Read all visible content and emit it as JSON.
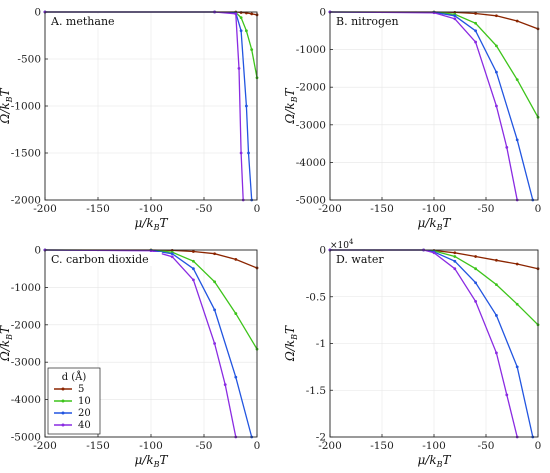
{
  "colors": {
    "d5": "#8B2500",
    "d10": "#3DC41A",
    "d20": "#2255E0",
    "d40": "#8A2BE2",
    "grid": "#e6e6e6"
  },
  "legend": {
    "title": "d (Å)",
    "items": [
      "5",
      "10",
      "20",
      "40"
    ],
    "placement": "inside lower-left of panel C"
  },
  "chart_data": [
    {
      "type": "line",
      "title": "A. methane",
      "xlabel": "μ/k_BT",
      "ylabel": "Ω/k_BT",
      "xlim": [
        -200,
        0
      ],
      "ylim": [
        -2000,
        0
      ],
      "xticks": [
        "-200",
        "-150",
        "-100",
        "-50",
        "0"
      ],
      "yticks": [
        "0",
        "-500",
        "-1000",
        "-1500",
        "-2000"
      ],
      "multiplier": "",
      "grid": true,
      "series": [
        {
          "name": "5",
          "x": [
            -200,
            -40,
            -20,
            -15,
            -10,
            -5,
            0
          ],
          "y": [
            0,
            0,
            0,
            -5,
            -10,
            -20,
            -30
          ]
        },
        {
          "name": "10",
          "x": [
            -200,
            -40,
            -20,
            -15,
            -10,
            -5,
            0
          ],
          "y": [
            0,
            0,
            -5,
            -60,
            -200,
            -400,
            -700
          ]
        },
        {
          "name": "20",
          "x": [
            -200,
            -40,
            -20,
            -15,
            -10,
            -8,
            -5
          ],
          "y": [
            0,
            0,
            -10,
            -200,
            -1000,
            -1500,
            -2000
          ]
        },
        {
          "name": "40",
          "x": [
            -200,
            -40,
            -20,
            -17,
            -15,
            -13
          ],
          "y": [
            0,
            0,
            -20,
            -600,
            -1500,
            -2000
          ]
        }
      ]
    },
    {
      "type": "line",
      "title": "B. nitrogen",
      "xlabel": "μ/k_BT",
      "ylabel": "Ω/k_BT",
      "xlim": [
        -200,
        0
      ],
      "ylim": [
        -5000,
        0
      ],
      "xticks": [
        "-200",
        "-150",
        "-100",
        "-50",
        "0"
      ],
      "yticks": [
        "0",
        "-1000",
        "-2000",
        "-3000",
        "-4000",
        "-5000"
      ],
      "multiplier": "",
      "grid": true,
      "series": [
        {
          "name": "5",
          "x": [
            -200,
            -100,
            -80,
            -60,
            -40,
            -20,
            0
          ],
          "y": [
            0,
            0,
            -10,
            -40,
            -100,
            -240,
            -450
          ]
        },
        {
          "name": "10",
          "x": [
            -200,
            -100,
            -80,
            -60,
            -40,
            -20,
            0
          ],
          "y": [
            0,
            -5,
            -60,
            -300,
            -900,
            -1800,
            -2800
          ]
        },
        {
          "name": "20",
          "x": [
            -200,
            -100,
            -80,
            -60,
            -40,
            -20,
            -5
          ],
          "y": [
            0,
            -10,
            -100,
            -500,
            -1600,
            -3400,
            -5000
          ]
        },
        {
          "name": "40",
          "x": [
            -200,
            -100,
            -80,
            -60,
            -40,
            -30,
            -20
          ],
          "y": [
            0,
            -20,
            -180,
            -800,
            -2500,
            -3600,
            -5000
          ]
        }
      ]
    },
    {
      "type": "line",
      "title": "C. carbon dioxide",
      "xlabel": "μ/k_BT",
      "ylabel": "Ω/k_BT",
      "xlim": [
        -200,
        0
      ],
      "ylim": [
        -5000,
        0
      ],
      "xticks": [
        "-200",
        "-150",
        "-100",
        "-50",
        "0"
      ],
      "yticks": [
        "0",
        "-1000",
        "-2000",
        "-3000",
        "-4000",
        "-5000"
      ],
      "multiplier": "",
      "grid": true,
      "series": [
        {
          "name": "5",
          "x": [
            -200,
            -100,
            -80,
            -60,
            -40,
            -20,
            0
          ],
          "y": [
            0,
            0,
            -10,
            -40,
            -100,
            -250,
            -480
          ]
        },
        {
          "name": "10",
          "x": [
            -200,
            -100,
            -80,
            -60,
            -40,
            -20,
            0
          ],
          "y": [
            0,
            -5,
            -60,
            -300,
            -850,
            -1700,
            -2650
          ]
        },
        {
          "name": "20",
          "x": [
            -200,
            -100,
            -80,
            -60,
            -40,
            -20,
            -5
          ],
          "y": [
            0,
            -10,
            -100,
            -500,
            -1600,
            -3400,
            -5000
          ]
        },
        {
          "name": "40",
          "x": [
            -200,
            -100,
            -80,
            -60,
            -40,
            -30,
            -20
          ],
          "y": [
            0,
            -20,
            -180,
            -800,
            -2500,
            -3600,
            -5000
          ]
        }
      ]
    },
    {
      "type": "line",
      "title": "D. water",
      "xlabel": "μ/k_BT",
      "ylabel": "Ω/k_BT",
      "xlim": [
        -200,
        0
      ],
      "ylim": [
        -2,
        0
      ],
      "xticks": [
        "-200",
        "-150",
        "-100",
        "-50",
        "0"
      ],
      "yticks": [
        "0",
        "-0.5",
        "-1",
        "-1.5",
        "-2"
      ],
      "multiplier": "×10",
      "multiplier_exp": "4",
      "grid": true,
      "series": [
        {
          "name": "5",
          "x": [
            -200,
            -110,
            -100,
            -80,
            -60,
            -40,
            -20,
            0
          ],
          "y": [
            0,
            0,
            -0.005,
            -0.03,
            -0.07,
            -0.11,
            -0.15,
            -0.2
          ]
        },
        {
          "name": "10",
          "x": [
            -200,
            -110,
            -100,
            -80,
            -60,
            -40,
            -20,
            0
          ],
          "y": [
            0,
            0,
            -0.01,
            -0.07,
            -0.2,
            -0.37,
            -0.58,
            -0.8
          ]
        },
        {
          "name": "20",
          "x": [
            -200,
            -110,
            -100,
            -80,
            -60,
            -40,
            -20,
            -5
          ],
          "y": [
            0,
            0,
            -0.02,
            -0.12,
            -0.35,
            -0.7,
            -1.25,
            -2
          ]
        },
        {
          "name": "40",
          "x": [
            -200,
            -110,
            -100,
            -80,
            -60,
            -40,
            -30,
            -20
          ],
          "y": [
            0,
            0,
            -0.03,
            -0.2,
            -0.55,
            -1.1,
            -1.55,
            -2
          ]
        }
      ]
    }
  ]
}
